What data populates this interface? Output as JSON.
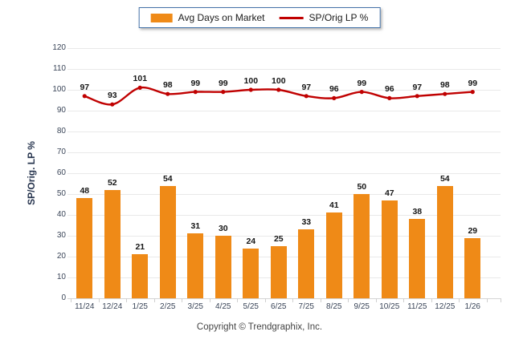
{
  "legend": {
    "bar_label": "Avg Days on Market",
    "line_label": "SP/Orig LP %"
  },
  "axis": {
    "y_title": "SP/Orig. LP %"
  },
  "footer": {
    "copyright": "Copyright © Trendgraphix, Inc."
  },
  "colors": {
    "bar": "#EF8A17",
    "line": "#C00000",
    "legend_border": "#4472A8",
    "grid": "#E9E9E9",
    "axis_line": "#D6D6D6",
    "tick_text": "#3A4558",
    "data_label": "#161616"
  },
  "chart_data": {
    "type": "combo",
    "categories": [
      "11/24",
      "12/24",
      "1/25",
      "2/25",
      "3/25",
      "4/25",
      "5/25",
      "6/25",
      "7/25",
      "8/25",
      "9/25",
      "10/25",
      "11/25",
      "12/25",
      "1/26"
    ],
    "series": [
      {
        "name": "Avg Days on Market",
        "type": "bar",
        "values": [
          48,
          52,
          21,
          54,
          31,
          30,
          24,
          25,
          33,
          41,
          50,
          47,
          38,
          54,
          29
        ]
      },
      {
        "name": "SP/Orig LP %",
        "type": "line",
        "values": [
          97,
          93,
          101,
          98,
          99,
          99,
          100,
          100,
          97,
          96,
          99,
          96,
          97,
          98,
          99
        ]
      }
    ],
    "ylabel": "SP/Orig. LP %",
    "ylim": [
      0,
      120
    ],
    "ytick_step": 10,
    "yticks": [
      0,
      10,
      20,
      30,
      40,
      50,
      60,
      70,
      80,
      90,
      100,
      110,
      120
    ],
    "grid": true,
    "legend_position": "top"
  }
}
